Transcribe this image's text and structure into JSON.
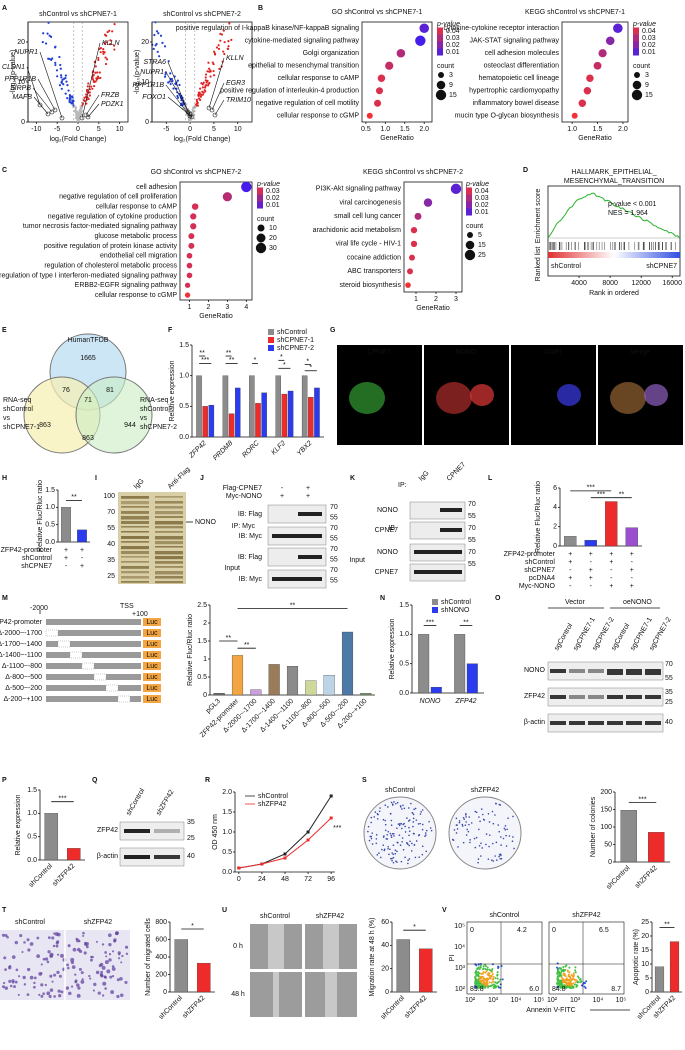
{
  "figure": {
    "letters": [
      "A",
      "B",
      "C",
      "D",
      "E",
      "F",
      "G",
      "H",
      "I",
      "J",
      "K",
      "L",
      "M",
      "N",
      "O",
      "P",
      "Q",
      "R",
      "S",
      "T",
      "U",
      "V"
    ]
  },
  "chart_data": [
    {
      "type": "volcano",
      "title": "shControl vs shCPNE7-1",
      "xlabel": "log₂(Fold Change)",
      "ylabel": "-log₁₀(p-value)",
      "xlim": [
        -12,
        12
      ],
      "xticks": [
        -10,
        -5,
        0,
        5,
        10
      ],
      "ylim": [
        0,
        25
      ],
      "yticks": [
        0,
        10,
        20
      ],
      "genes": [
        "NUPR1",
        "CLDN1",
        "PPP1R1B",
        "SIRPB",
        "MAFB",
        "KLLN",
        "FRZB",
        "PDZK1"
      ]
    },
    {
      "type": "volcano",
      "title": "shControl vs shCPNE7-2",
      "xlabel": "log₂(Fold Change)",
      "ylabel": "-log₁₀(p-value)",
      "xlim": [
        -8,
        13
      ],
      "xticks": [
        -5,
        0,
        5,
        10
      ],
      "ylim": [
        0,
        25
      ],
      "yticks": [
        0,
        10,
        20
      ],
      "genes": [
        "STRA6",
        "NUPR1",
        "PPP1R1B",
        "FOXO1",
        "KLLN",
        "EGR3",
        "TRIM10"
      ]
    },
    {
      "type": "dot",
      "title": "GO shControl vs shCPNE7-1",
      "xlabel": "GeneRatio",
      "categories": [
        "positive regulation of I-kappaB kinase/NF-kappaB signaling",
        "cytokine-mediated signaling pathway",
        "Golgi organization",
        "epithelial to mesenchymal transition",
        "cellular response to cAMP",
        "positive regulation of interleukin-4 production",
        "negative regulation of cell motility",
        "cellular response to cGMP"
      ],
      "values": [
        2.0,
        1.9,
        1.4,
        1.1,
        0.9,
        0.85,
        0.8,
        0.6
      ],
      "sizes": [
        12,
        15,
        9,
        8,
        6,
        5,
        5,
        3
      ],
      "pvalues": [
        0.01,
        0.005,
        0.03,
        0.035,
        0.04,
        0.04,
        0.04,
        0.045
      ],
      "xlim": [
        0.4,
        2.2
      ],
      "xticks": [
        0.5,
        {
          "value": 1,
          "label": "1.0"
        },
        1.5,
        {
          "value": 2,
          "label": "2.0"
        }
      ],
      "color_label": "p-value",
      "color_ticks": [
        0.04,
        0.03,
        0.02,
        0.01
      ],
      "size_label": "count",
      "size_ticks": [
        3,
        9,
        15
      ]
    },
    {
      "type": "dot",
      "title": "KEGG shControl vs shCPNE7-1",
      "xlabel": "GeneRatio",
      "categories": [
        "cytokine-cytokine receptor interaction",
        "JAK-STAT signaling pathway",
        "cell adhesion molecules",
        "osteoclast differentiation",
        "hematopoietic cell lineage",
        "hypertrophic cardiomyopathy",
        "inflammatory bowel disease",
        "mucin type O-glycan biosynthesis"
      ],
      "values": [
        1.9,
        1.75,
        1.6,
        1.5,
        1.35,
        1.3,
        1.2,
        1.05
      ],
      "sizes": [
        12,
        9,
        8,
        7,
        6,
        6,
        6,
        3
      ],
      "pvalues": [
        0.01,
        0.02,
        0.03,
        0.035,
        0.04,
        0.04,
        0.04,
        0.045
      ],
      "xlim": [
        0.8,
        2.1
      ],
      "xticks": [
        {
          "value": 1,
          "label": "1.0"
        },
        1.5,
        {
          "value": 2,
          "label": "2.0"
        }
      ],
      "color_label": "p-value",
      "color_ticks": [
        0.04,
        0.03,
        0.02,
        0.01
      ],
      "size_label": "count",
      "size_ticks": [
        3,
        9,
        15
      ]
    },
    {
      "type": "dot",
      "title": "GO shControl vs shCPNE7-2",
      "xlabel": "GeneRatio",
      "categories": [
        "cell adhesion",
        "negative regulation of cell proliferation",
        "cellular response to cAMP",
        "negative regulation of cytokine production",
        "tumor necrosis factor-mediated signaling pathway",
        "glucose metabolic process",
        "positive regulation of protein kinase activity",
        "endothelial cell migration",
        "regulation of cholesterol metabolic process",
        "positive regulation of type I interferon-mediated signaling pathway",
        "ERBB2-EGFR signaling pathway",
        "cellular response to cGMP"
      ],
      "values": [
        4.0,
        3.0,
        1.3,
        1.2,
        1.2,
        1.1,
        1.1,
        1.0,
        1.0,
        1.0,
        0.9,
        0.9
      ],
      "sizes": [
        30,
        22,
        8,
        7,
        7,
        6,
        6,
        5,
        5,
        5,
        4,
        4
      ],
      "pvalues": [
        0.005,
        0.025,
        0.03,
        0.03,
        0.03,
        0.03,
        0.03,
        0.03,
        0.03,
        0.03,
        0.03,
        0.035
      ],
      "xlim": [
        0.5,
        4.3
      ],
      "xticks": [
        1,
        2,
        3,
        4
      ],
      "color_label": "p-value",
      "color_ticks": [
        0.03,
        0.02,
        0.01
      ],
      "size_label": "count",
      "size_ticks": [
        10,
        20,
        30
      ]
    },
    {
      "type": "dot",
      "title": "KEGG shControl vs shCPNE7-2",
      "xlabel": "GeneRatio",
      "categories": [
        "PI3K-Akt signaling pathway",
        "viral carcinogenesis",
        "small cell lung cancer",
        "arachidonic acid metabolism",
        "viral life cycle - HIV-1",
        "cocaine addiction",
        "ABC transporters",
        "steroid biosynthesis"
      ],
      "values": [
        3.0,
        1.6,
        1.1,
        0.9,
        0.9,
        0.8,
        0.7,
        0.6
      ],
      "sizes": [
        25,
        14,
        8,
        6,
        6,
        5,
        5,
        4
      ],
      "pvalues": [
        0.01,
        0.02,
        0.03,
        0.04,
        0.04,
        0.04,
        0.04,
        0.045
      ],
      "xlim": [
        0.4,
        3.3
      ],
      "xticks": [
        1,
        2,
        3
      ],
      "color_label": "p-value",
      "color_ticks": [
        0.04,
        0.03,
        0.02,
        0.01
      ],
      "size_label": "count",
      "size_ticks": [
        5,
        15,
        25
      ]
    },
    {
      "type": "gsea",
      "title": [
        "HALLMARK_EPITHELIAL_",
        "MESENCHYMAL_TRANSITION"
      ],
      "annotations": [
        "p-value < 0.001",
        "NES = 1.964"
      ],
      "ylabel": "Enrichment score",
      "ylabel2": "Ranked list",
      "group_labels": [
        "shControl",
        "shCPNE7"
      ],
      "xlabel": "Rank in ordered",
      "xlim": [
        0,
        17000
      ],
      "xticks": [
        4000,
        8000,
        12000,
        16000
      ]
    },
    {
      "type": "venn",
      "sets": [
        [
          "HumanTFDB"
        ],
        [
          "RNA-seq",
          "shControl",
          "vs",
          "shCPNE7-1"
        ],
        [
          "RNA-seq",
          "shControl",
          "vs",
          "shCPNE7-2"
        ]
      ],
      "regions": [
        1665,
        76,
        81,
        71,
        863,
        863,
        944
      ]
    },
    {
      "type": "bar",
      "ylabel": "Relative expression",
      "categories": [
        "ZFP42",
        "PRDM8",
        "RORC",
        "KLF2",
        "YBX2"
      ],
      "series": [
        {
          "name": "shControl",
          "color": "#8c8c8c",
          "values": [
            1.0,
            1.0,
            1.0,
            1.0,
            1.0
          ]
        },
        {
          "name": "shCPNE7-1",
          "color": "#ee2b2b",
          "values": [
            0.5,
            0.38,
            0.55,
            0.7,
            0.65
          ]
        },
        {
          "name": "shCPNE7-2",
          "color": "#2b3cee",
          "values": [
            0.52,
            0.8,
            0.72,
            0.75,
            0.8
          ]
        }
      ],
      "ylim": [
        0,
        1.5
      ],
      "yticks": [
        {
          "value": 0,
          "label": "0.0"
        },
        0.5,
        {
          "value": 1,
          "label": "1.0"
        },
        1.5
      ],
      "significance": [
        "**",
        "***",
        "**",
        "**",
        "*",
        "*",
        "*",
        "*",
        "*"
      ]
    },
    {
      "type": "bar",
      "ylabel": "Relative Fluc/Rluc ratio",
      "values": [
        1.0,
        0.35
      ],
      "colors": [
        "#8c8c8c",
        "#2b3cee"
      ],
      "ylim": [
        0,
        1.5
      ],
      "yticks": [
        {
          "value": 0,
          "label": "0.0"
        },
        0.5,
        {
          "value": 1,
          "label": "1.0"
        },
        1.5
      ],
      "significance": [
        "**"
      ],
      "conditions": [
        {
          "name": "ZFP42-promoter",
          "values": [
            "+",
            "+"
          ]
        },
        {
          "name": "shControl",
          "values": [
            "+",
            "-"
          ]
        },
        {
          "name": "shCPNE7",
          "values": [
            "-",
            "+"
          ]
        }
      ]
    },
    {
      "type": "bar",
      "ylabel": "Relative Fluc/Rluc ratio",
      "values": [
        1.0,
        0.6,
        4.6,
        1.9
      ],
      "colors": [
        "#8c8c8c",
        "#2b3cee",
        "#ee2b2b",
        "#9b4fd0"
      ],
      "ylim": [
        0,
        6
      ],
      "yticks": [
        0,
        2,
        4,
        6
      ],
      "significance": [
        "***",
        "***",
        "**"
      ],
      "conditions": [
        {
          "name": "ZFP42-promoter",
          "values": [
            "+",
            "+",
            "+",
            "+"
          ]
        },
        {
          "name": "shControl",
          "values": [
            "+",
            "-",
            "+",
            "-"
          ]
        },
        {
          "name": "shCPNE7",
          "values": [
            "-",
            "+",
            "-",
            "+"
          ]
        },
        {
          "name": "pcDNA4",
          "values": [
            "+",
            "+",
            "-",
            "-"
          ]
        },
        {
          "name": "Myc-NONO",
          "values": [
            "-",
            "-",
            "+",
            "+"
          ]
        }
      ]
    },
    {
      "type": "bar",
      "ylabel": "Relative Fluc/Rluc ratio",
      "categories": [
        "pGL3",
        "ZFP42-promoter",
        "Δ-2000~-1700",
        "Δ-1700~-1400",
        "Δ-1400~-1100",
        "Δ-1100~-800",
        "Δ-800~-500",
        "Δ-500~-200",
        "Δ-200~+100"
      ],
      "values": [
        0.05,
        1.1,
        0.15,
        0.85,
        0.8,
        0.4,
        0.55,
        1.75,
        0.05
      ],
      "colors": [
        "#6d6d6d",
        "#f2a541",
        "#c9a0dc",
        "#9a7b5a",
        "#8b8b8b",
        "#cfd89a",
        "#bcd4e6",
        "#4d79a7",
        "#7a9a6b"
      ],
      "ylim": [
        0,
        2.5
      ],
      "yticks": [
        0,
        0.5,
        1,
        1.5,
        2,
        2.5
      ],
      "significance": [
        "**",
        "**",
        "**"
      ]
    },
    {
      "type": "bar",
      "ylabel": "Relative expression",
      "categories": [
        "NONO",
        "ZFP42"
      ],
      "series": [
        {
          "name": "shControl",
          "color": "#8c8c8c",
          "values": [
            1.0,
            1.0
          ]
        },
        {
          "name": "shNONO",
          "color": "#2b3cee",
          "values": [
            0.1,
            0.5
          ]
        }
      ],
      "ylim": [
        0,
        1.5
      ],
      "yticks": [
        {
          "value": 0,
          "label": "0.0"
        },
        0.5,
        {
          "value": 1,
          "label": "1.0"
        },
        1.5
      ],
      "significance": [
        "***",
        "**"
      ]
    },
    {
      "type": "bar",
      "ylabel": "Relative expression",
      "categories": [
        "shControl",
        "shZFP42"
      ],
      "values": [
        1.0,
        0.25
      ],
      "colors": [
        "#8c8c8c",
        "#ee2b2b"
      ],
      "ylim": [
        0,
        1.5
      ],
      "yticks": [
        {
          "value": 0,
          "label": "0.0"
        },
        0.5,
        {
          "value": 1,
          "label": "1.0"
        },
        1.5
      ],
      "significance": [
        "***"
      ]
    },
    {
      "type": "line",
      "ylabel": "OD 450 nm",
      "x": [
        0,
        24,
        48,
        72,
        96
      ],
      "series": [
        {
          "name": "shControl",
          "color": "#222222",
          "values": [
            0.1,
            0.2,
            0.45,
            1.0,
            1.9
          ]
        },
        {
          "name": "shZFP42",
          "color": "#ee2b2b",
          "values": [
            0.1,
            0.2,
            0.35,
            0.8,
            1.35
          ]
        }
      ],
      "xlim": [
        -4,
        100
      ],
      "xticks": [
        0,
        24,
        48,
        72,
        96
      ],
      "ylim": [
        0,
        2
      ],
      "yticks": [
        {
          "value": 0,
          "label": "0.0"
        },
        0.5,
        {
          "value": 1,
          "label": "1.0"
        },
        1.5,
        {
          "value": 2,
          "label": "2.0"
        }
      ],
      "significance": [
        "***"
      ]
    },
    {
      "type": "bar",
      "ylabel": "Number of colonies",
      "categories": [
        "shControl",
        "shZFP42"
      ],
      "values": [
        148,
        85
      ],
      "colors": [
        "#8c8c8c",
        "#ee2b2b"
      ],
      "ylim": [
        0,
        200
      ],
      "yticks": [
        0,
        50,
        100,
        150,
        200
      ],
      "significance": [
        "***"
      ]
    },
    {
      "type": "bar",
      "ylabel": "Number of migrated cells",
      "categories": [
        "shControl",
        "shZFP42"
      ],
      "values": [
        600,
        330
      ],
      "colors": [
        "#8c8c8c",
        "#ee2b2b"
      ],
      "ylim": [
        0,
        800
      ],
      "yticks": [
        0,
        200,
        400,
        600,
        800
      ],
      "significance": [
        "*"
      ]
    },
    {
      "type": "bar",
      "ylabel": "Migration rate at 48 h (%)",
      "categories": [
        "shControl",
        "shZFP42"
      ],
      "values": [
        45,
        37
      ],
      "colors": [
        "#8c8c8c",
        "#ee2b2b"
      ],
      "ylim": [
        0,
        60
      ],
      "yticks": [
        0,
        20,
        40,
        60
      ],
      "significance": [
        "*"
      ]
    },
    {
      "type": "bar",
      "ylabel": "Apoptotic rate (%)",
      "categories": [
        "shControl",
        "shZFP42"
      ],
      "values": [
        9,
        18
      ],
      "colors": [
        "#8c8c8c",
        "#ee2b2b"
      ],
      "ylim": [
        0,
        25
      ],
      "yticks": [
        0,
        5,
        10,
        15,
        20,
        25
      ],
      "significance": [
        "**"
      ]
    },
    {
      "type": "flow",
      "xlabel": "Annexin V-FITC",
      "ylabel": "PI",
      "xticks": [
        "10²",
        "10³",
        "10⁴",
        "10⁵"
      ],
      "yticks": [
        "10⁵",
        "10⁴",
        "10³",
        "10²"
      ],
      "samples": [
        {
          "name": "shControl",
          "quadrants": [
            "0",
            "4.2",
            "89.8",
            "6.0"
          ]
        },
        {
          "name": "shZFP42",
          "quadrants": [
            "0",
            "6.5",
            "84.8",
            "8.7"
          ]
        }
      ]
    }
  ],
  "images": {
    "G": {
      "labels": [
        "CPNE7",
        "NONO",
        "DAPI",
        "Merge"
      ]
    },
    "I": {
      "lanes": [
        "IgG",
        "Anti-Flag"
      ],
      "markers": [
        "100",
        "70",
        "55",
        "40",
        "35",
        "25"
      ],
      "arrow": "NONO"
    },
    "J": {
      "rows": [
        {
          "name": "Flag-CPNE7",
          "values": [
            "-",
            "+"
          ]
        },
        {
          "name": "Myc-NONO",
          "values": [
            "+",
            "+"
          ]
        }
      ],
      "labels": [
        "IP: Myc",
        "IB: Flag",
        "IB: Myc",
        "Input",
        "IB: Flag",
        "IB: Myc"
      ],
      "markers": [
        "70",
        "55",
        "70",
        "55",
        "70",
        "55",
        "70",
        "55"
      ]
    },
    "K": {
      "labels": [
        "IP:",
        "IgG",
        "CPNE7",
        "IB",
        "NONO",
        "CPNE7",
        "Input",
        "NONO",
        "CPNE7"
      ],
      "markers": [
        "70",
        "55",
        "70",
        "55",
        "70",
        "55"
      ]
    },
    "M": {
      "labels": [
        "ZFP42-promoter",
        "-2000",
        "TSS",
        "+100",
        "Luc"
      ]
    },
    "O": {
      "groups": [
        "Vector",
        "oeNONO"
      ],
      "lanes": [
        "sgControl",
        "sgCPNE7-1",
        "sgCPNE7-2",
        "sgControl",
        "sgCPNE7-1",
        "sgCPNE7-2"
      ],
      "rows": [
        "NONO",
        "ZFP42",
        "β-actin"
      ],
      "markers": [
        "70",
        "55",
        "35",
        "25",
        "40"
      ]
    },
    "Q": {
      "lanes": [
        "shControl",
        "shZFP42"
      ],
      "rows": [
        "ZFP42",
        "β-actin"
      ],
      "markers": [
        "35",
        "25",
        "40"
      ]
    },
    "S": {
      "labels": [
        "shControl",
        "shZFP42"
      ]
    },
    "T": {
      "labels": [
        "shControl",
        "shZFP42"
      ]
    },
    "U": {
      "labels": [
        "shControl",
        "shZFP42",
        "0 h",
        "48 h"
      ]
    }
  }
}
